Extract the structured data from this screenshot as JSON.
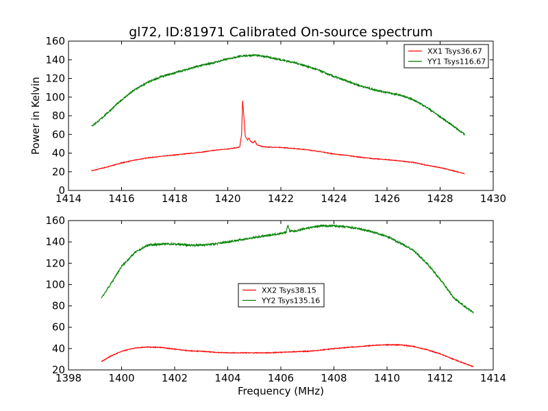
{
  "title": "gl72, ID:81971 Calibrated On-source spectrum",
  "chart_data": [
    {
      "type": "line",
      "ylabel": "Power in Kelvin",
      "xlabel": "",
      "xlim": [
        1414,
        1430
      ],
      "ylim": [
        0,
        160
      ],
      "xticks": [
        "1414",
        "1416",
        "1418",
        "1420",
        "1422",
        "1424",
        "1426",
        "1428",
        "1430"
      ],
      "yticks": [
        "0",
        "20",
        "40",
        "60",
        "80",
        "100",
        "120",
        "140",
        "160"
      ],
      "legend_position": "top-right",
      "series": [
        {
          "name": "XX1 Tsys36.67",
          "color": "#ff0000",
          "x": [
            1414.88,
            1415.5,
            1416,
            1416.5,
            1417,
            1417.5,
            1418,
            1418.5,
            1419,
            1419.5,
            1420,
            1420.3,
            1420.45,
            1420.52,
            1420.56,
            1420.6,
            1420.66,
            1420.75,
            1420.8,
            1420.85,
            1420.95,
            1421.02,
            1421.1,
            1421.2,
            1421.3,
            1421.5,
            1422,
            1422.5,
            1423,
            1423.5,
            1424,
            1424.5,
            1425,
            1425.5,
            1426,
            1426.5,
            1427,
            1427.5,
            1428,
            1428.5,
            1428.92
          ],
          "y": [
            21,
            25.5,
            29.5,
            32.5,
            35,
            36.5,
            38,
            39.5,
            41,
            43,
            44.5,
            45.5,
            46.5,
            60,
            96,
            82,
            58,
            54,
            56,
            53,
            51,
            53,
            49,
            48,
            47,
            46.5,
            46,
            45,
            43.5,
            41.5,
            39,
            37.5,
            35.5,
            34,
            33,
            31.5,
            30,
            27,
            24.5,
            21,
            18
          ]
        },
        {
          "name": "YY1 Tsys116.67",
          "color": "#008000",
          "x": [
            1414.88,
            1415.2,
            1415.5,
            1416,
            1416.5,
            1417,
            1417.5,
            1418,
            1418.5,
            1419,
            1419.5,
            1420,
            1420.5,
            1421,
            1421.5,
            1422,
            1422.5,
            1423,
            1423.5,
            1424,
            1424.5,
            1425,
            1425.5,
            1426,
            1426.5,
            1427,
            1427.5,
            1428,
            1428.5,
            1428.92
          ],
          "y": [
            69,
            76,
            84,
            97,
            108,
            116,
            122,
            126,
            130,
            134,
            137,
            141,
            144,
            145,
            143,
            140,
            137,
            133,
            128,
            122,
            117,
            112,
            108,
            105,
            102,
            97,
            89,
            79,
            69,
            60
          ]
        }
      ]
    },
    {
      "type": "line",
      "ylabel": "",
      "xlabel": "Frequency (MHz)",
      "xlim": [
        1398,
        1414
      ],
      "ylim": [
        20,
        160
      ],
      "xticks": [
        "1398",
        "1400",
        "1402",
        "1404",
        "1406",
        "1408",
        "1410",
        "1412",
        "1414"
      ],
      "yticks": [
        "20",
        "40",
        "60",
        "80",
        "100",
        "120",
        "140",
        "160"
      ],
      "legend_position": "center",
      "series": [
        {
          "name": "XX2 Tsys38.15",
          "color": "#ff0000",
          "x": [
            1399.25,
            1399.6,
            1400,
            1400.5,
            1401,
            1401.5,
            1402,
            1402.5,
            1403,
            1403.5,
            1404,
            1404.5,
            1405,
            1405.5,
            1406,
            1406.5,
            1407,
            1407.5,
            1408,
            1408.5,
            1409,
            1409.5,
            1410,
            1410.5,
            1411,
            1411.5,
            1412,
            1412.5,
            1413.25
          ],
          "y": [
            28,
            33,
            37.5,
            40.5,
            41.5,
            41,
            39.5,
            38,
            37.5,
            36.5,
            36,
            36,
            36,
            36,
            36.5,
            37,
            37.5,
            38.5,
            40,
            41,
            42,
            43,
            43.5,
            43.5,
            42,
            39,
            35,
            30,
            23
          ]
        },
        {
          "name": "YY2 Tsys135.16",
          "color": "#008000",
          "x": [
            1399.25,
            1399.5,
            1400,
            1400.5,
            1401,
            1401.5,
            1402,
            1402.5,
            1403,
            1403.5,
            1404,
            1404.5,
            1405,
            1405.5,
            1406,
            1406.2,
            1406.27,
            1406.33,
            1406.5,
            1407,
            1407.5,
            1408,
            1408.5,
            1409,
            1409.5,
            1410,
            1410.5,
            1411,
            1411.5,
            1412,
            1412.5,
            1413,
            1413.25
          ],
          "y": [
            88,
            97,
            117,
            130,
            137,
            138,
            138,
            137,
            137,
            138,
            140,
            142,
            144,
            146,
            148,
            149,
            156,
            150,
            150,
            153,
            155,
            155,
            154,
            152,
            149,
            145,
            139,
            132,
            120,
            105,
            88,
            78,
            74
          ]
        }
      ]
    }
  ]
}
